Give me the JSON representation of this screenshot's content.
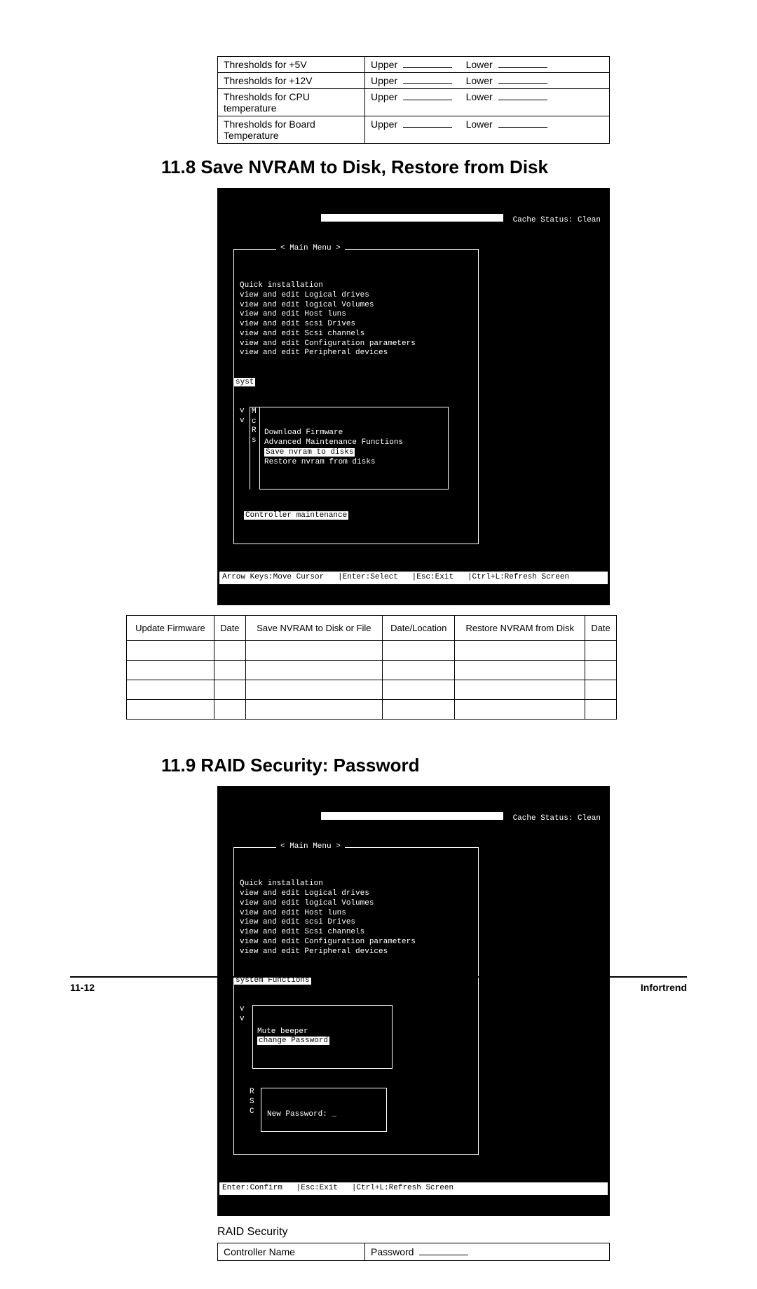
{
  "thresholds": {
    "rows": [
      {
        "label": "Thresholds for +5V",
        "upper": "Upper",
        "lower": "Lower"
      },
      {
        "label": "Thresholds for +12V",
        "upper": "Upper",
        "lower": "Lower"
      },
      {
        "label": "Thresholds for CPU temperature",
        "upper": "Upper",
        "lower": "Lower"
      },
      {
        "label": "Thresholds for Board Temperature",
        "upper": "Upper",
        "lower": "Lower"
      }
    ]
  },
  "section_11_8": {
    "title": "11.8 Save NVRAM to Disk, Restore from Disk"
  },
  "terminal1": {
    "cache_status": "Cache Status: Clean",
    "main_menu_title": "< Main Menu >",
    "menu_items": [
      "Quick installation",
      "view and edit Logical drives",
      "view and edit logical Volumes",
      "view and edit Host luns",
      "view and edit scsi Drives",
      "view and edit Scsi channels",
      "view and edit Configuration parameters",
      "view and edit Peripheral devices"
    ],
    "syst_label": "syst",
    "side_letters": "v\nv\n\n\n",
    "side_letters2": "M\nc\nR\ns",
    "submenu_items": [
      "Download Firmware",
      "Advanced Maintenance Functions",
      "Save nvram to disks",
      "Restore nvram from disks"
    ],
    "submenu_highlight_index": 2,
    "controller_maintenance": "Controller maintenance",
    "footer": "Arrow Keys:Move Cursor   |Enter:Select   |Esc:Exit   |Ctrl+L:Refresh Screen"
  },
  "nvram_table": {
    "headers": [
      "Update Firmware",
      "Date",
      "Save NVRAM to Disk or File",
      "Date/Location",
      "Restore NVRAM from Disk",
      "Date"
    ],
    "row_count": 4
  },
  "section_11_9": {
    "title": "11.9 RAID Security: Password"
  },
  "terminal2": {
    "cache_status": "Cache Status: Clean",
    "main_menu_title": "< Main Menu >",
    "menu_items": [
      "Quick installation",
      "view and edit Logical drives",
      "view and edit logical Volumes",
      "view and edit Host luns",
      "view and edit scsi Drives",
      "view and edit Scsi channels",
      "view and edit Configuration parameters",
      "view and edit Peripheral devices"
    ],
    "system_functions": "system Functions",
    "side_letters": "v\nv",
    "side_letters2": "R\nS\nC",
    "submenu_items": [
      "Mute beeper",
      "change Password"
    ],
    "submenu_highlight_index": 1,
    "new_password": "New Password: _",
    "footer": "Enter:Confirm   |Esc:Exit   |Ctrl+L:Refresh Screen"
  },
  "raid_security": {
    "label": "RAID Security",
    "controller_name": "Controller Name",
    "password_label": "Password"
  },
  "footer": {
    "page": "11-12",
    "brand": "Infortrend"
  }
}
